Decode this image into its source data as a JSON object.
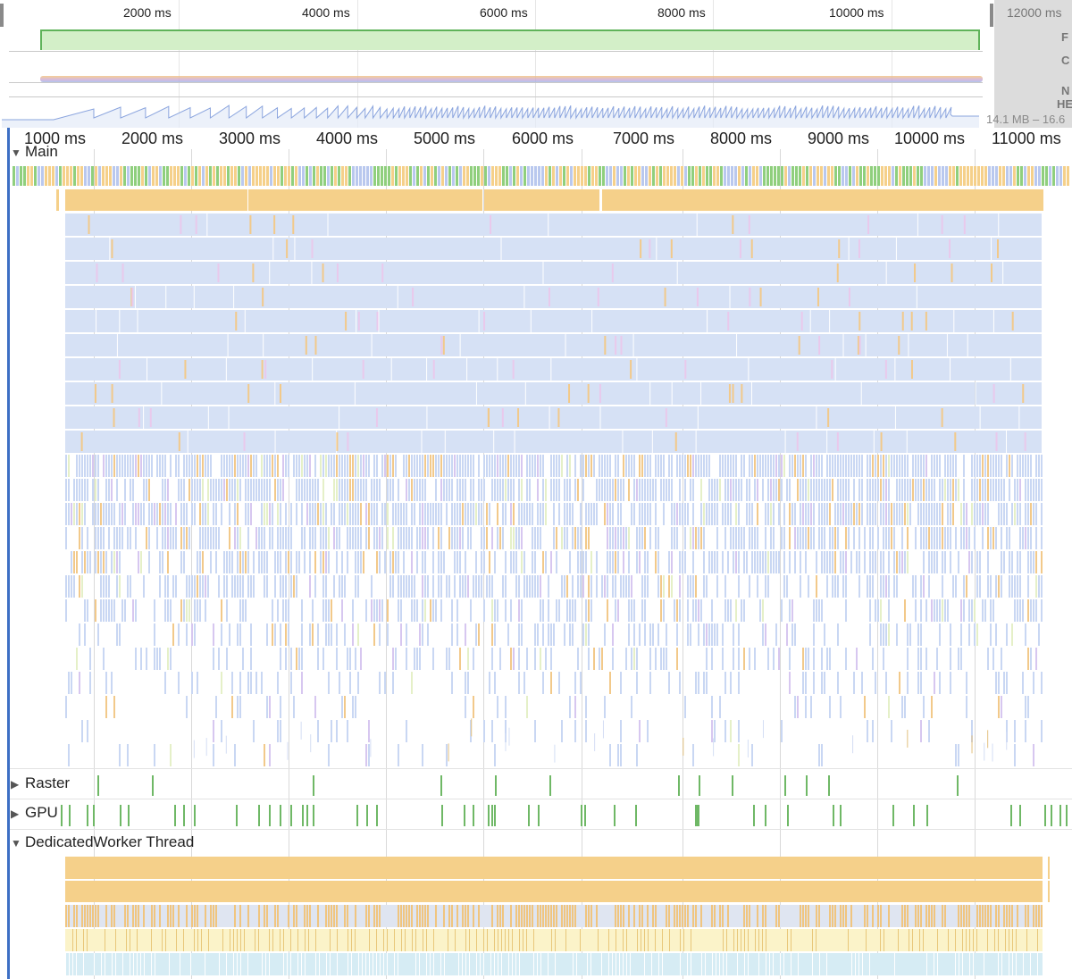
{
  "overview": {
    "ticks": [
      "2000 ms",
      "4000 ms",
      "6000 ms",
      "8000 ms",
      "10000 ms"
    ],
    "end_tick": "12000 ms",
    "side_labels": [
      "F",
      "C",
      "N",
      "HE"
    ],
    "heap_range": "14.1 MB – 16.6"
  },
  "ruler": {
    "ticks": [
      "1000 ms",
      "2000 ms",
      "3000 ms",
      "4000 ms",
      "5000 ms",
      "6000 ms",
      "7000 ms",
      "8000 ms",
      "9000 ms",
      "10000 ms",
      "11000 ms"
    ]
  },
  "tracks": {
    "main": "Main",
    "raster": "Raster",
    "gpu": "GPU",
    "worker": "DedicatedWorker Thread"
  },
  "colors": {
    "scripting": "#f5d08a",
    "rendering": "#d6e1f5",
    "painting": "#7ec46f",
    "idle_blue": "#c7d6f3",
    "worker_yellow": "#fbf3c9",
    "worker_cyan": "#d6ecf4",
    "selection": "#3d6fc4"
  }
}
